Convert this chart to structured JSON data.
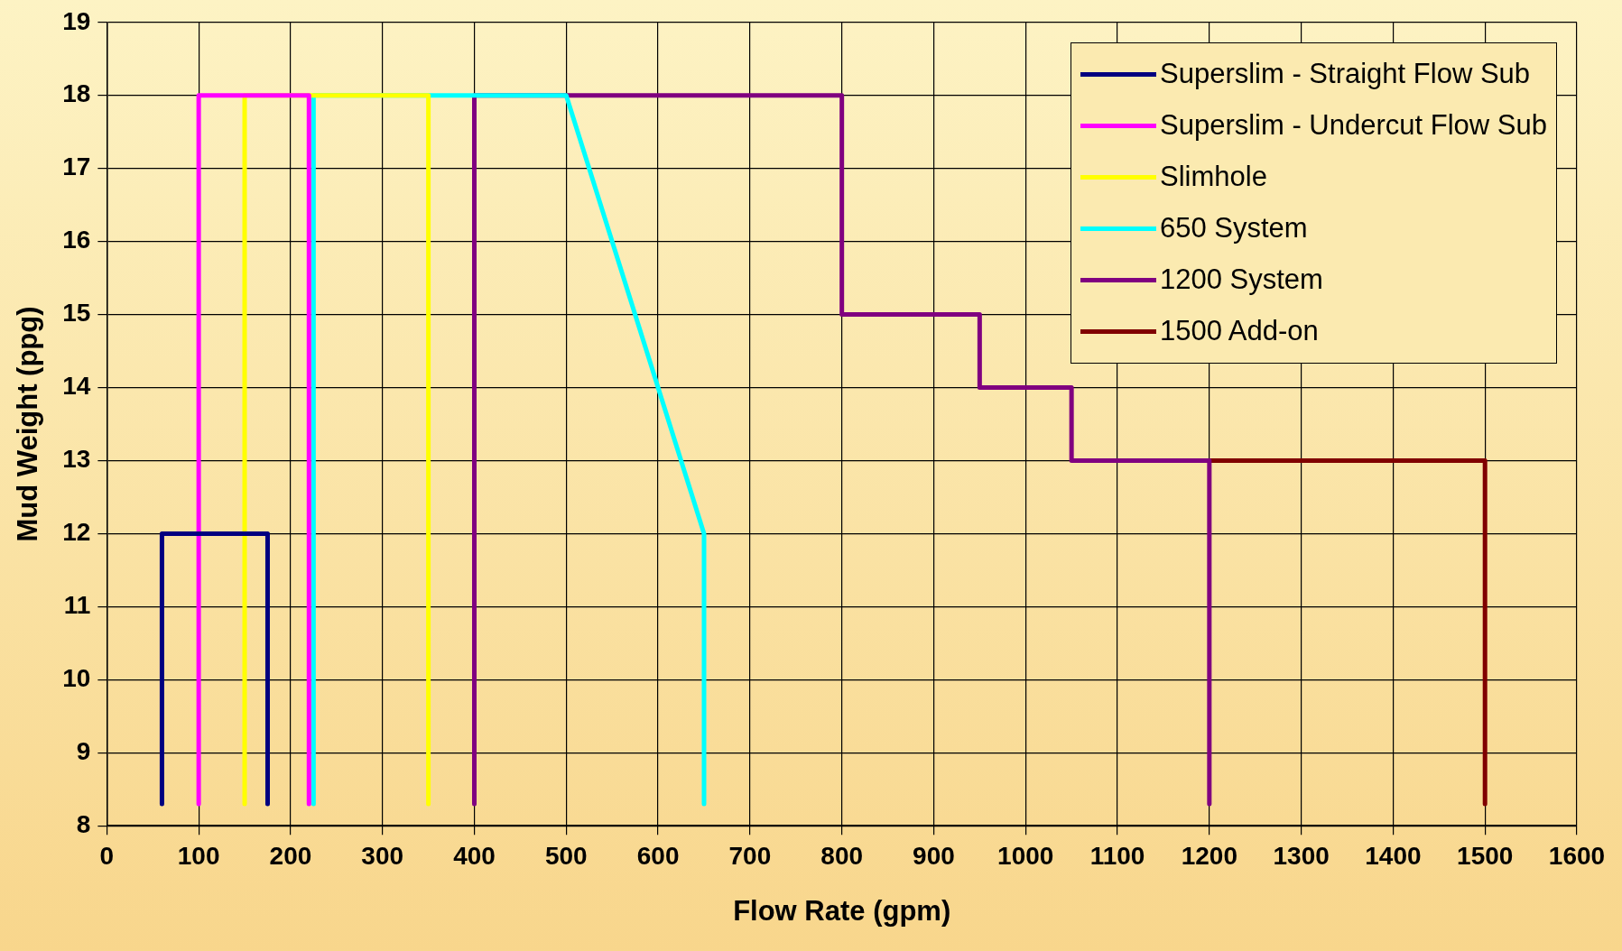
{
  "chart_data": {
    "type": "line",
    "xlabel": "Flow Rate (gpm)",
    "ylabel": "Mud Weight (ppg)",
    "xlim": [
      0,
      1600
    ],
    "xticks": [
      0,
      100,
      200,
      300,
      400,
      500,
      600,
      700,
      800,
      900,
      1000,
      1100,
      1200,
      1300,
      1400,
      1500,
      1600
    ],
    "ylim": [
      8,
      19
    ],
    "yticks": [
      8,
      9,
      10,
      11,
      12,
      13,
      14,
      15,
      16,
      17,
      18,
      19
    ],
    "grid": true,
    "legend": "top right",
    "marker": "none",
    "line_style": "solid",
    "series": [
      {
        "name": "Superslim - Straight Flow Sub",
        "color": "#000080",
        "x": [
          60,
          60,
          175,
          175
        ],
        "values": [
          8.3,
          12,
          12,
          8.3
        ]
      },
      {
        "name": "Superslim - Undercut Flow Sub",
        "color": "#ff00ff",
        "x": [
          100,
          100,
          220,
          220
        ],
        "values": [
          8.3,
          18,
          18,
          8.3
        ]
      },
      {
        "name": "Slimhole",
        "color": "#ffff00",
        "x": [
          150,
          150,
          350,
          350
        ],
        "values": [
          8.3,
          18,
          18,
          8.3
        ]
      },
      {
        "name": "650 System",
        "color": "#00ffff",
        "x": [
          225,
          225,
          500,
          650,
          650
        ],
        "values": [
          8.3,
          18,
          18,
          12,
          8.3
        ]
      },
      {
        "name": "1200 System",
        "color": "#800080",
        "x": [
          400,
          400,
          800,
          800,
          950,
          950,
          1050,
          1050,
          1200,
          1200
        ],
        "values": [
          8.3,
          18,
          18,
          15,
          15,
          14,
          14,
          13,
          13,
          8.3
        ]
      },
      {
        "name": "1500 Add-on",
        "color": "#800000",
        "x": [
          1200,
          1500,
          1500
        ],
        "values": [
          13,
          13,
          8.3
        ]
      }
    ]
  }
}
